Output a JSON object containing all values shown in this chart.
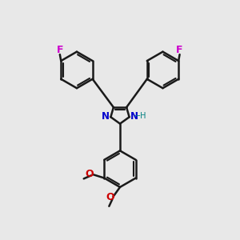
{
  "background_color": "#e8e8e8",
  "bond_color": "#1a1a1a",
  "bond_width": 1.8,
  "N_color": "#0000cc",
  "O_color": "#cc0000",
  "F_color": "#cc00cc",
  "H_color": "#008080",
  "font_size_atom": 8.5,
  "fig_size": [
    3.0,
    3.0
  ],
  "dpi": 100,
  "xlim": [
    0.0,
    10.0
  ],
  "ylim": [
    0.0,
    10.5
  ]
}
